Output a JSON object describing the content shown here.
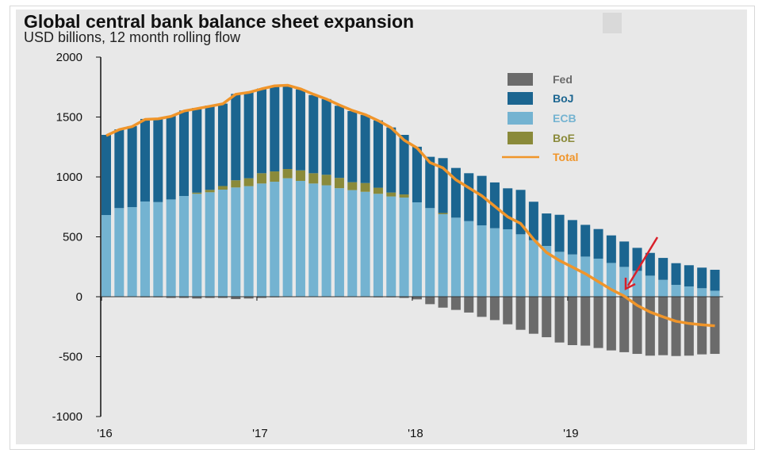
{
  "chart_data": {
    "type": "bar",
    "stacked": true,
    "title": "Global central bank balance sheet expansion",
    "subtitle": "USD billions, 12 month rolling flow",
    "xlabel": "",
    "ylabel": "",
    "ylim": [
      -1000,
      2000
    ],
    "yticks": [
      "2000",
      "1500",
      "1000",
      "500",
      "0",
      "-500",
      "-1000"
    ],
    "xticks": [
      "'16",
      "'17",
      "'18",
      "'19"
    ],
    "x": [
      "2016-01",
      "2016-02",
      "2016-03",
      "2016-04",
      "2016-05",
      "2016-06",
      "2016-07",
      "2016-08",
      "2016-09",
      "2016-10",
      "2016-11",
      "2016-12",
      "2017-01",
      "2017-02",
      "2017-03",
      "2017-04",
      "2017-05",
      "2017-06",
      "2017-07",
      "2017-08",
      "2017-09",
      "2017-10",
      "2017-11",
      "2017-12",
      "2018-01",
      "2018-02",
      "2018-03",
      "2018-04",
      "2018-05",
      "2018-06",
      "2018-07",
      "2018-08",
      "2018-09",
      "2018-10",
      "2018-11",
      "2018-12",
      "2019-01",
      "2019-02",
      "2019-03",
      "2019-04",
      "2019-05",
      "2019-06",
      "2019-07",
      "2019-08",
      "2019-09",
      "2019-10",
      "2019-11",
      "2019-12"
    ],
    "grid": false,
    "legend_position": "top-right",
    "series": [
      {
        "name": "Fed",
        "color": "#6b6b6b",
        "values": [
          0,
          0,
          0,
          -5,
          -5,
          -10,
          -10,
          -15,
          -10,
          -10,
          -20,
          -15,
          -10,
          -5,
          0,
          0,
          0,
          0,
          0,
          0,
          0,
          -5,
          -5,
          -10,
          -22,
          -62,
          -91,
          -110,
          -132,
          -168,
          -195,
          -230,
          -276,
          -309,
          -338,
          -382,
          -404,
          -408,
          -428,
          -448,
          -463,
          -477,
          -492,
          -488,
          -495,
          -492,
          -481,
          -477
        ]
      },
      {
        "name": "ECB",
        "color": "#74b3d1",
        "values": [
          682,
          740,
          748,
          795,
          790,
          812,
          841,
          859,
          872,
          894,
          912,
          923,
          945,
          960,
          989,
          967,
          945,
          930,
          906,
          890,
          876,
          859,
          837,
          828,
          788,
          740,
          689,
          660,
          631,
          596,
          572,
          563,
          521,
          472,
          424,
          375,
          353,
          335,
          318,
          282,
          249,
          216,
          176,
          141,
          99,
          86,
          71,
          50
        ]
      },
      {
        "name": "BoE",
        "color": "#8a8a3a",
        "values": [
          0,
          0,
          0,
          0,
          0,
          0,
          0,
          10,
          20,
          30,
          60,
          66,
          86,
          86,
          77,
          88,
          86,
          88,
          86,
          66,
          73,
          51,
          33,
          26,
          0,
          0,
          10,
          0,
          0,
          0,
          0,
          0,
          0,
          0,
          0,
          0,
          0,
          0,
          0,
          0,
          0,
          0,
          0,
          0,
          0,
          0,
          0,
          0
        ]
      },
      {
        "name": "BoJ",
        "color": "#1b6590",
        "values": [
          669,
          657,
          676,
          689,
          698,
          698,
          713,
          707,
          704,
          688,
          721,
          720,
          707,
          714,
          694,
          676,
          652,
          632,
          602,
          594,
          568,
          562,
          543,
          497,
          464,
          428,
          458,
          415,
          400,
          413,
          382,
          342,
          371,
          321,
          271,
          309,
          287,
          265,
          247,
          230,
          212,
          192,
          190,
          183,
          181,
          177,
          172,
          175
        ]
      }
    ],
    "line": {
      "name": "Total",
      "color": "#f0952a",
      "values": [
        1345,
        1395,
        1420,
        1480,
        1485,
        1505,
        1550,
        1570,
        1590,
        1610,
        1690,
        1705,
        1735,
        1760,
        1765,
        1735,
        1690,
        1650,
        1600,
        1555,
        1520,
        1470,
        1410,
        1307,
        1242,
        1120,
        1075,
        976,
        909,
        843,
        755,
        667,
        611,
        479,
        369,
        302,
        247,
        192,
        126,
        60,
        5,
        -72,
        -128,
        -168,
        -205,
        -223,
        -234,
        -243
      ]
    },
    "legend_order": [
      "Fed",
      "BoJ",
      "ECB",
      "BoE",
      "Total"
    ],
    "annotation": {
      "type": "arrow",
      "color": "#d9202a"
    }
  }
}
